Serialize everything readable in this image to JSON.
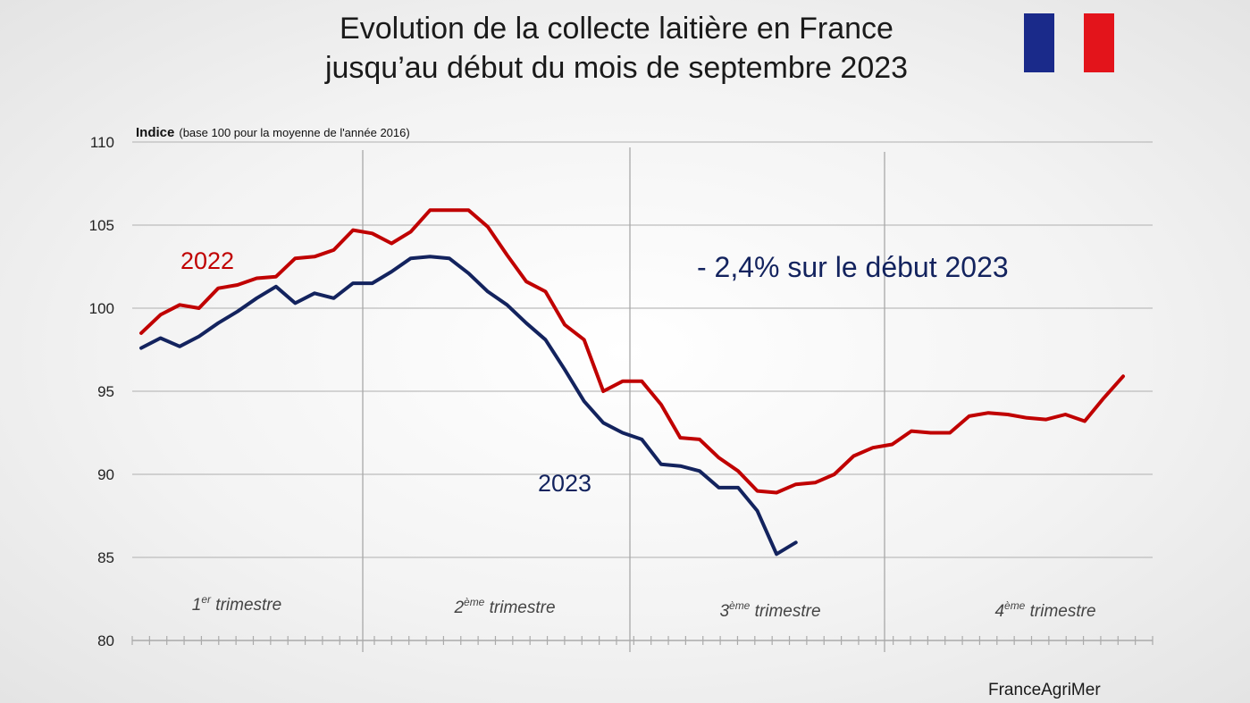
{
  "title_line1": "Evolution de la collecte laitière en France",
  "title_line2": "jusqu’au début du mois de septembre 2023",
  "flag_colors": [
    "#1a2a8a",
    "#ffffff",
    "#e3141b"
  ],
  "source": "FranceAgriMer",
  "chart_data": {
    "type": "line",
    "ylabel_bold": "Indice",
    "ylabel_note": "(base 100 pour la moyenne de l'année 2016)",
    "ylim": [
      80,
      110
    ],
    "yticks": [
      80,
      85,
      90,
      95,
      100,
      105,
      110
    ],
    "grid": true,
    "x_unit": "week",
    "quarters": [
      {
        "label": "1",
        "sup": "er",
        "rest": " trimestre"
      },
      {
        "label": "2",
        "sup": "ème",
        "rest": " trimestre"
      },
      {
        "label": "3",
        "sup": "ème",
        "rest": " trimestre"
      },
      {
        "label": "4",
        "sup": "ème",
        "rest": " trimestre"
      }
    ],
    "annotation": "- 2,4% sur le début 2023",
    "series": [
      {
        "name": "2022",
        "color": "#c00000",
        "values": [
          98.5,
          99.6,
          100.2,
          100.0,
          101.2,
          101.4,
          101.8,
          101.9,
          103.0,
          103.1,
          103.5,
          104.7,
          104.5,
          103.9,
          104.6,
          105.9,
          105.9,
          105.9,
          104.9,
          103.2,
          101.6,
          101.0,
          99.0,
          98.1,
          95.0,
          95.6,
          95.6,
          94.2,
          92.2,
          92.1,
          91.0,
          90.2,
          89.0,
          88.9,
          89.4,
          89.5,
          90.0,
          91.1,
          91.6,
          91.8,
          92.6,
          92.5,
          92.5,
          93.5,
          93.7,
          93.6,
          93.4,
          93.3,
          93.6,
          93.2,
          94.6,
          95.9
        ]
      },
      {
        "name": "2023",
        "color": "#13235e",
        "values": [
          97.6,
          98.2,
          97.7,
          98.3,
          99.1,
          99.8,
          100.6,
          101.3,
          100.3,
          100.9,
          100.6,
          101.5,
          101.5,
          102.2,
          103.0,
          103.1,
          103.0,
          102.1,
          101.0,
          100.2,
          99.1,
          98.1,
          96.3,
          94.4,
          93.1,
          92.5,
          92.1,
          90.6,
          90.5,
          90.2,
          89.2,
          89.2,
          87.8,
          85.2,
          85.9
        ]
      }
    ]
  }
}
